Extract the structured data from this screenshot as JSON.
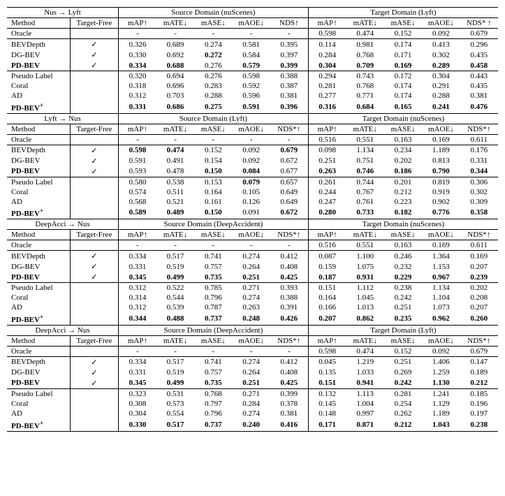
{
  "labels": {
    "method": "Method",
    "targetFree": "Target-Free",
    "source": "Source Domain",
    "target": "Target Domain",
    "mAP": "mAP↑",
    "mATE": "mATE↓",
    "mASE": "mASE↓",
    "mAOE": "mAOE↓",
    "NDS": "NDS↑",
    "NDSs": "NDS*↑",
    "NDSs2": "NDS* ↑",
    "check": "✓"
  },
  "blocks": [
    {
      "title": "Nus → Lyft",
      "sourceName": "nuScenes",
      "targetName": "Lyft",
      "srcNdsLabel": "NDS↑",
      "tgtNdsLabel": "NDS* ↑",
      "oracle": {
        "method": "Oracle",
        "src": [
          "-",
          "-",
          "-",
          "-",
          "-"
        ],
        "tgt": [
          "0.598",
          "0.474",
          "0.152",
          "0.092",
          "0.679"
        ]
      },
      "group1": [
        {
          "method": "BEVDepth",
          "tf": true,
          "src": [
            "0.326",
            "0.689",
            "0.274",
            "0.581",
            "0.395"
          ],
          "tgt": [
            "0.114",
            "0.981",
            "0.174",
            "0.413",
            "0.296"
          ]
        },
        {
          "method": "DG-BEV",
          "tf": true,
          "src": [
            "0.330",
            "0.692",
            "0.272",
            "0.584",
            "0.397"
          ],
          "tgt": [
            "0.284",
            "0.768",
            "0.171",
            "0.302",
            "0.435"
          ],
          "boldSrc": [
            2
          ]
        },
        {
          "method": "PD-BEV",
          "bold": true,
          "tf": true,
          "src": [
            "0.334",
            "0.688",
            "0.276",
            "0.579",
            "0.399"
          ],
          "tgt": [
            "0.304",
            "0.709",
            "0.169",
            "0.289",
            "0.458"
          ],
          "boldSrc": [
            0,
            1,
            3,
            4
          ],
          "boldTgt": [
            0,
            1,
            2,
            3,
            4
          ]
        }
      ],
      "group2": [
        {
          "method": "Pseudo Label",
          "src": [
            "0.320",
            "0.694",
            "0.276",
            "0.598",
            "0.388"
          ],
          "tgt": [
            "0.294",
            "0.743",
            "0.172",
            "0.304",
            "0.443"
          ]
        },
        {
          "method": "Coral",
          "src": [
            "0.318",
            "0.696",
            "0.283",
            "0.592",
            "0.387"
          ],
          "tgt": [
            "0.281",
            "0.768",
            "0.174",
            "0.291",
            "0.435"
          ]
        },
        {
          "method": "AD",
          "src": [
            "0.312",
            "0.703",
            "0.288",
            "0.596",
            "0.381"
          ],
          "tgt": [
            "0.277",
            "0.771",
            "0.174",
            "0.288",
            "0.381"
          ]
        },
        {
          "method": "PD-BEV+",
          "sup": true,
          "bold": true,
          "src": [
            "0.331",
            "0.686",
            "0.275",
            "0.591",
            "0.396"
          ],
          "tgt": [
            "0.316",
            "0.684",
            "0.165",
            "0.241",
            "0.476"
          ],
          "boldSrc": [
            0,
            1,
            2,
            3,
            4
          ],
          "boldTgt": [
            0,
            1,
            2,
            3,
            4
          ]
        }
      ]
    },
    {
      "title": "Lyft → Nus",
      "sourceName": "Lyft",
      "targetName": "nuScenes",
      "srcNdsLabel": "NDS*↑",
      "tgtNdsLabel": "NDS*↑",
      "oracle": {
        "method": "Oracle",
        "src": [
          "-",
          "-",
          "-",
          "-",
          "-"
        ],
        "tgt": [
          "0.516",
          "0.551",
          "0.163",
          "0.169",
          "0.611"
        ]
      },
      "group1": [
        {
          "method": "BEVDepth",
          "tf": true,
          "src": [
            "0.598",
            "0.474",
            "0.152",
            "0.092",
            "0.679"
          ],
          "tgt": [
            "0.098",
            "1.134",
            "0.234",
            "1.189",
            "0.176"
          ],
          "boldSrc": [
            0,
            1,
            4
          ]
        },
        {
          "method": "DG-BEV",
          "tf": true,
          "src": [
            "0.591",
            "0.491",
            "0.154",
            "0.092",
            "0.672"
          ],
          "tgt": [
            "0.251",
            "0.751",
            "0.202",
            "0.813",
            "0.331"
          ]
        },
        {
          "method": "PD-BEV",
          "bold": true,
          "tf": true,
          "src": [
            "0.593",
            "0.478",
            "0.150",
            "0.084",
            "0.677"
          ],
          "tgt": [
            "0.263",
            "0.746",
            "0.186",
            "0.790",
            "0.344"
          ],
          "boldSrc": [
            2,
            3
          ],
          "boldTgt": [
            0,
            1,
            2,
            3,
            4
          ]
        }
      ],
      "group2": [
        {
          "method": "Pseudo Label",
          "src": [
            "0.580",
            "0.538",
            "0.153",
            "0.079",
            "0.657"
          ],
          "tgt": [
            "0.261",
            "0.744",
            "0.201",
            "0.819",
            "0.306"
          ],
          "boldSrc": [
            3
          ]
        },
        {
          "method": "Coral",
          "src": [
            "0.574",
            "0.511",
            "0.164",
            "0.105",
            "0.649"
          ],
          "tgt": [
            "0.244",
            "0.767",
            "0.212",
            "0.919",
            "0.302"
          ]
        },
        {
          "method": "AD",
          "src": [
            "0.568",
            "0.521",
            "0.161",
            "0.126",
            "0.649"
          ],
          "tgt": [
            "0.247",
            "0.761",
            "0.223",
            "0.902",
            "0.309"
          ]
        },
        {
          "method": "PD-BEV+",
          "sup": true,
          "bold": true,
          "src": [
            "0.589",
            "0.489",
            "0.150",
            "0.091",
            "0.672"
          ],
          "tgt": [
            "0.280",
            "0.733",
            "0.182",
            "0.776",
            "0.358"
          ],
          "boldSrc": [
            0,
            1,
            2,
            4
          ],
          "boldTgt": [
            0,
            1,
            2,
            3,
            4
          ]
        }
      ]
    },
    {
      "title": "DeepAcci → Nus",
      "sourceName": "DeepAccident",
      "targetName": "nuScenes",
      "srcNdsLabel": "NDS*↑",
      "tgtNdsLabel": "NDS*↑",
      "oracle": {
        "method": "Oracle",
        "src": [
          "-",
          "-",
          "-",
          "-",
          "-"
        ],
        "tgt": [
          "0.516",
          "0.551",
          "0.163",
          "0.169",
          "0.611"
        ]
      },
      "group1": [
        {
          "method": "BEVDepth",
          "tf": true,
          "src": [
            "0.334",
            "0.517",
            "0.741",
            "0.274",
            "0.412"
          ],
          "tgt": [
            "0.087",
            "1.100",
            "0.246",
            "1.364",
            "0.169"
          ]
        },
        {
          "method": "DG-BEV",
          "tf": true,
          "src": [
            "0.331",
            "0.519",
            "0.757",
            "0.264",
            "0.408"
          ],
          "tgt": [
            "0.159",
            "1.075",
            "0.232",
            "1.153",
            "0.207"
          ]
        },
        {
          "method": "PD-BEV",
          "bold": true,
          "tf": true,
          "src": [
            "0.345",
            "0.499",
            "0.735",
            "0.251",
            "0.425"
          ],
          "tgt": [
            "0.187",
            "0.931",
            "0.229",
            "0.967",
            "0.239"
          ],
          "boldSrc": [
            0,
            1,
            2,
            3,
            4
          ],
          "boldTgt": [
            0,
            1,
            2,
            3,
            4
          ]
        }
      ],
      "group2": [
        {
          "method": "Pseudo Label",
          "src": [
            "0.312",
            "0.522",
            "0.785",
            "0.271",
            "0.393"
          ],
          "tgt": [
            "0.151",
            "1.112",
            "0.238",
            "1.134",
            "0.202"
          ]
        },
        {
          "method": "Coral",
          "src": [
            "0.314",
            "0.544",
            "0.796",
            "0.274",
            "0.388"
          ],
          "tgt": [
            "0.164",
            "1.045",
            "0.242",
            "1.104",
            "0.208"
          ]
        },
        {
          "method": "AD",
          "src": [
            "0.312",
            "0.539",
            "0.787",
            "0.263",
            "0.391"
          ],
          "tgt": [
            "0.166",
            "1.013",
            "0.251",
            "1.073",
            "0.207"
          ]
        },
        {
          "method": "PD-BEV+",
          "sup": true,
          "bold": true,
          "src": [
            "0.344",
            "0.488",
            "0.737",
            "0.248",
            "0.426"
          ],
          "tgt": [
            "0.207",
            "0.862",
            "0.235",
            "0.962",
            "0.260"
          ],
          "boldSrc": [
            0,
            1,
            2,
            3,
            4
          ],
          "boldTgt": [
            0,
            1,
            2,
            3,
            4
          ]
        }
      ]
    },
    {
      "title": "DeepAcci → Nus",
      "sourceName": "DeepAccident",
      "targetName": "Lyft",
      "srcNdsLabel": "NDS*↑",
      "tgtNdsLabel": "NDS*↑",
      "oracle": {
        "method": "Oracle",
        "src": [
          "-",
          "-",
          "-",
          "-",
          "-"
        ],
        "tgt": [
          "0.598",
          "0.474",
          "0.152",
          "0.092",
          "0.679"
        ]
      },
      "group1": [
        {
          "method": "BEVDepth",
          "tf": true,
          "src": [
            "0.334",
            "0.517",
            "0.741",
            "0.274",
            "0.412"
          ],
          "tgt": [
            "0.045",
            "1.219",
            "0.251",
            "1.406",
            "0.147"
          ]
        },
        {
          "method": "DG-BEV",
          "tf": true,
          "src": [
            "0.331",
            "0.519",
            "0.757",
            "0.264",
            "0.408"
          ],
          "tgt": [
            "0.135",
            "1.033",
            "0.269",
            "1.259",
            "0.189"
          ]
        },
        {
          "method": "PD-BEV",
          "bold": true,
          "tf": true,
          "src": [
            "0.345",
            "0.499",
            "0.735",
            "0.251",
            "0.425"
          ],
          "tgt": [
            "0.151",
            "0.941",
            "0.242",
            "1.130",
            "0.212"
          ],
          "boldSrc": [
            0,
            1,
            2,
            3,
            4
          ],
          "boldTgt": [
            0,
            1,
            2,
            3,
            4
          ]
        }
      ],
      "group2": [
        {
          "method": "Pseudo Label",
          "src": [
            "0.323",
            "0.531",
            "0.768",
            "0.271",
            "0.399"
          ],
          "tgt": [
            "0.132",
            "1.113",
            "0.281",
            "1.241",
            "0.185"
          ]
        },
        {
          "method": "Coral",
          "src": [
            "0.308",
            "0.573",
            "0.797",
            "0.284",
            "0.378"
          ],
          "tgt": [
            "0.145",
            "1.004",
            "0.254",
            "1.129",
            "0.196"
          ]
        },
        {
          "method": "AD",
          "src": [
            "0.304",
            "0.554",
            "0.796",
            "0.274",
            "0.381"
          ],
          "tgt": [
            "0.148",
            "0.997",
            "0.262",
            "1.189",
            "0.197"
          ]
        },
        {
          "method": "PD-BEV+",
          "sup": true,
          "bold": true,
          "src": [
            "0.330",
            "0.517",
            "0.737",
            "0.240",
            "0.416"
          ],
          "tgt": [
            "0.171",
            "0.871",
            "0.212",
            "1.043",
            "0.238"
          ],
          "boldSrc": [
            0,
            1,
            2,
            3,
            4
          ],
          "boldTgt": [
            0,
            1,
            2,
            3,
            4
          ]
        }
      ]
    }
  ]
}
